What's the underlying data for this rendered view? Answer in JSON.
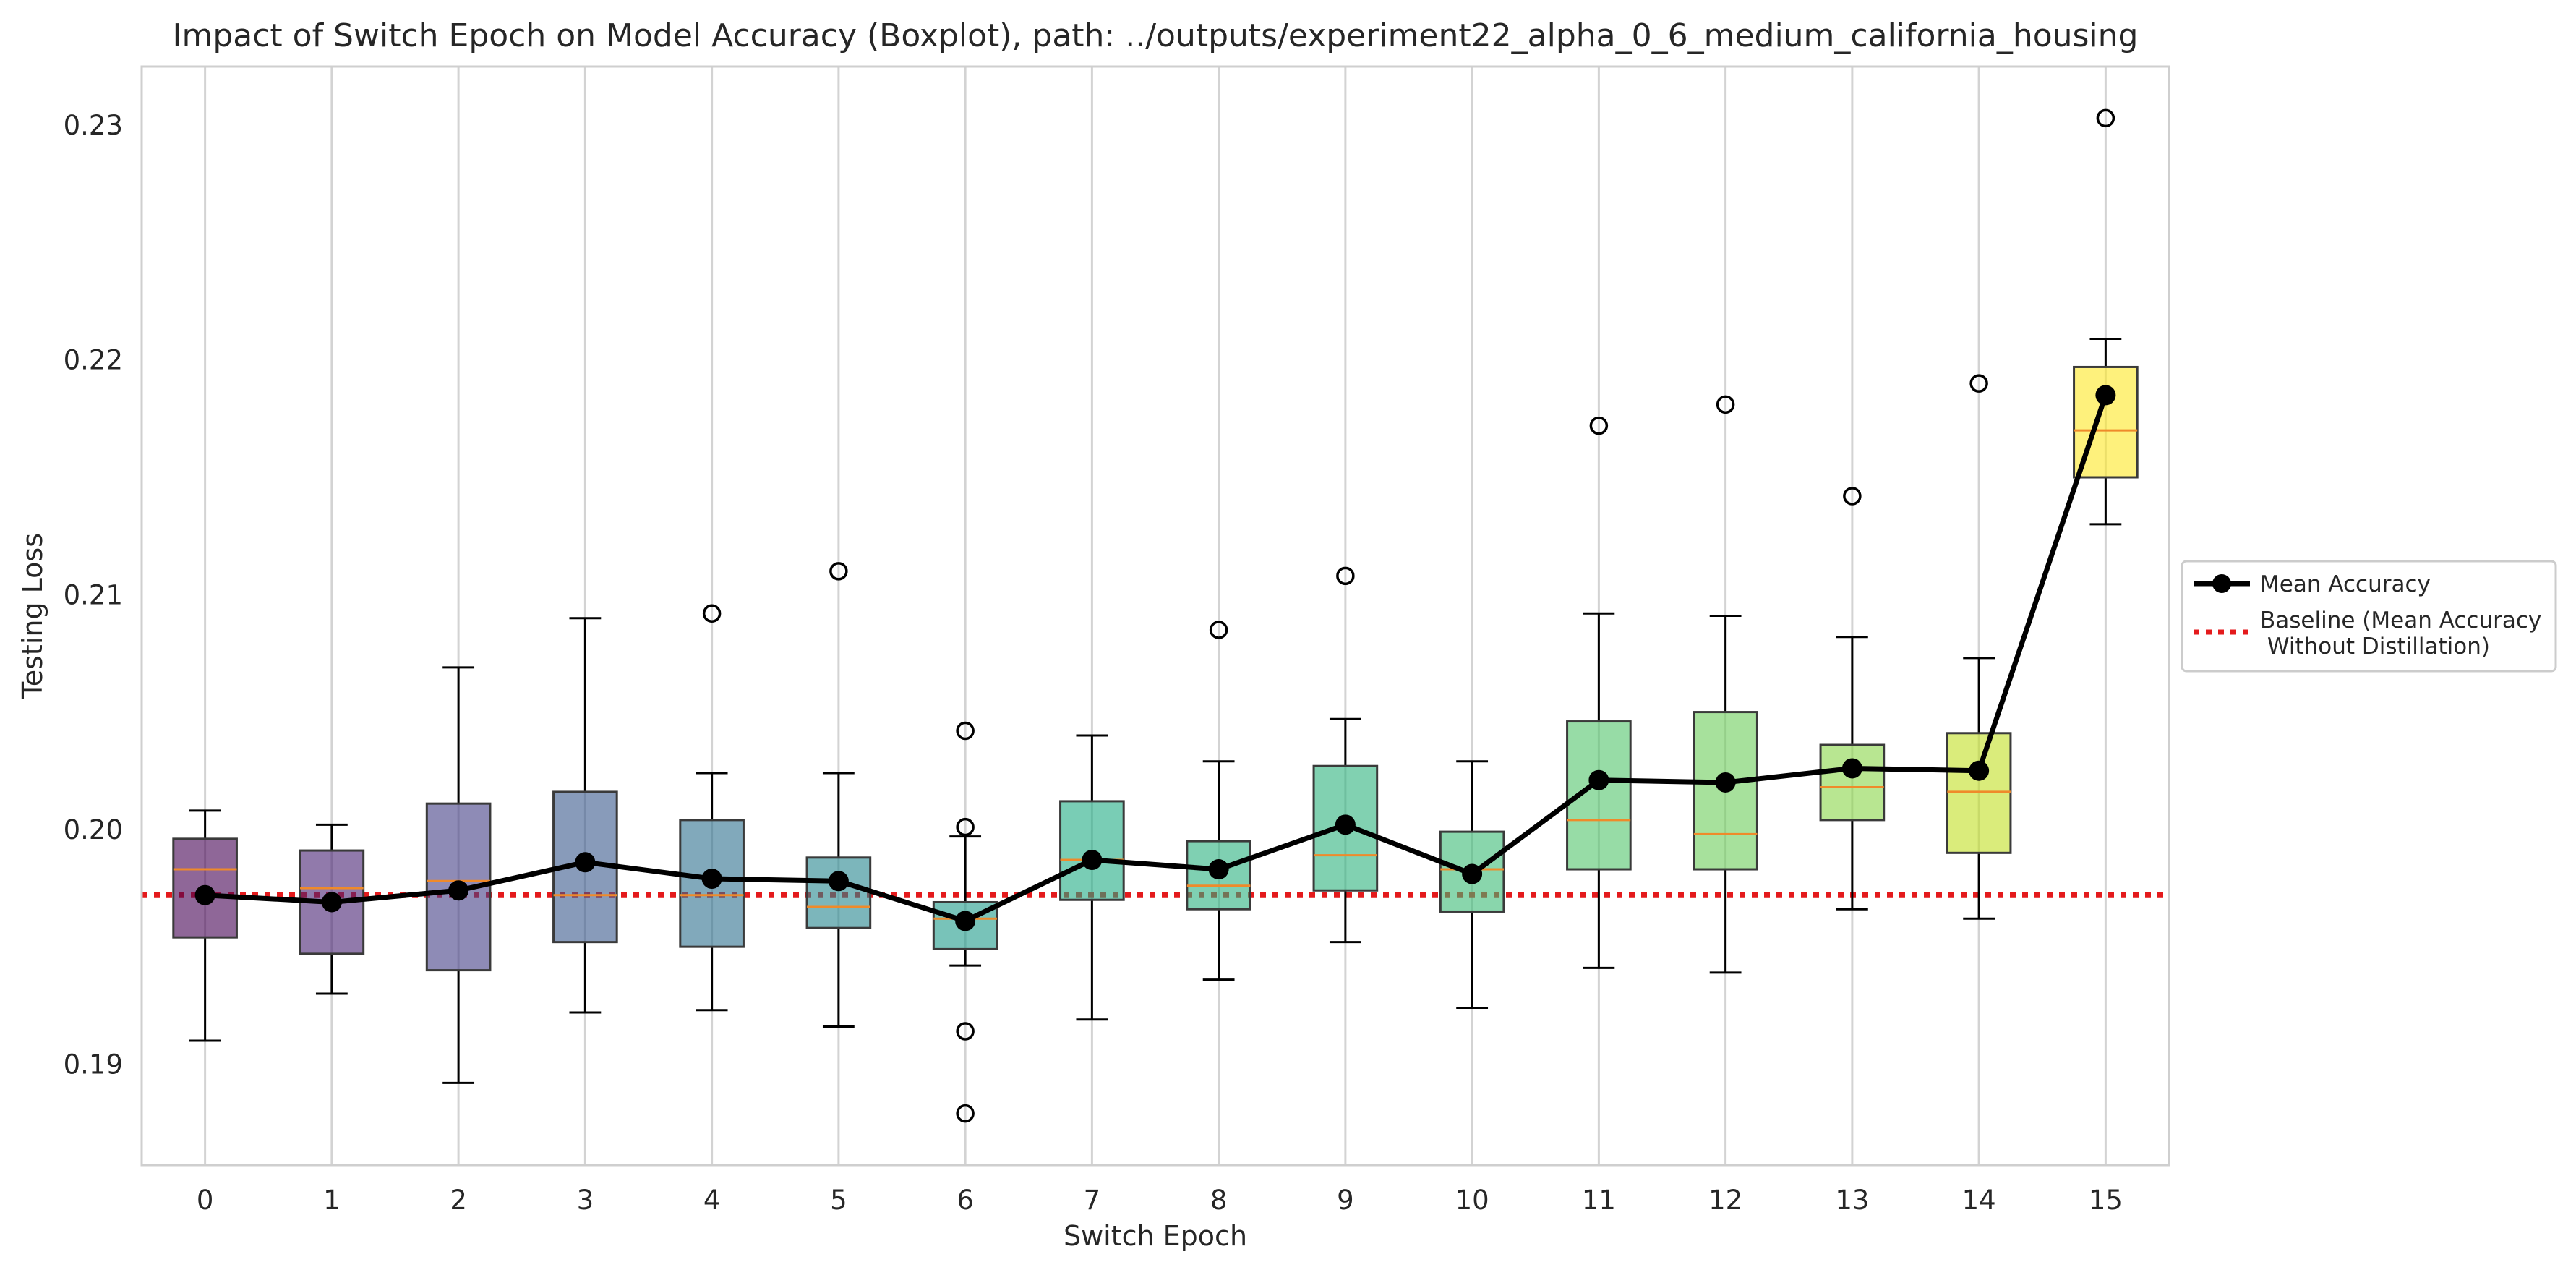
{
  "chart_data": {
    "type": "boxplot",
    "title": "Impact of Switch Epoch on Model Accuracy (Boxplot), path: ../outputs/experiment22_alpha_0_6_medium_california_housing",
    "xlabel": "Switch Epoch",
    "ylabel": "Testing Loss",
    "categories": [
      "0",
      "1",
      "2",
      "3",
      "4",
      "5",
      "6",
      "7",
      "8",
      "9",
      "10",
      "11",
      "12",
      "13",
      "14",
      "15"
    ],
    "ylim": [
      0.1857,
      0.2325
    ],
    "yticks": [
      {
        "value": 0.19,
        "label": "0.19"
      },
      {
        "value": 0.2,
        "label": "0.20"
      },
      {
        "value": 0.21,
        "label": "0.21"
      },
      {
        "value": 0.22,
        "label": "0.22"
      },
      {
        "value": 0.23,
        "label": "0.23"
      }
    ],
    "grid": "x",
    "boxes": [
      {
        "whislo": 0.191,
        "q1": 0.1954,
        "med": 0.1983,
        "q3": 0.1996,
        "whishi": 0.2008,
        "fliers": [],
        "color": "#440154"
      },
      {
        "whislo": 0.193,
        "q1": 0.1947,
        "med": 0.1975,
        "q3": 0.1991,
        "whishi": 0.2002,
        "fliers": [],
        "color": "#482173"
      },
      {
        "whislo": 0.1892,
        "q1": 0.194,
        "med": 0.1978,
        "q3": 0.2011,
        "whishi": 0.2069,
        "fliers": [],
        "color": "#433e85"
      },
      {
        "whislo": 0.1922,
        "q1": 0.1952,
        "med": 0.1972,
        "q3": 0.2016,
        "whishi": 0.209,
        "fliers": [],
        "color": "#38588c"
      },
      {
        "whislo": 0.1923,
        "q1": 0.195,
        "med": 0.1972,
        "q3": 0.2004,
        "whishi": 0.2024,
        "fliers": [
          0.2092
        ],
        "color": "#2d708e"
      },
      {
        "whislo": 0.1916,
        "q1": 0.1958,
        "med": 0.1967,
        "q3": 0.1988,
        "whishi": 0.2024,
        "fliers": [
          0.211
        ],
        "color": "#25858e"
      },
      {
        "whislo": 0.1942,
        "q1": 0.1949,
        "med": 0.1962,
        "q3": 0.1969,
        "whishi": 0.1997,
        "fliers": [
          0.2042,
          0.2001,
          0.1914,
          0.1879
        ],
        "color": "#1e9b8a"
      },
      {
        "whislo": 0.1919,
        "q1": 0.197,
        "med": 0.1987,
        "q3": 0.2012,
        "whishi": 0.204,
        "fliers": [],
        "color": "#20ab84"
      },
      {
        "whislo": 0.1936,
        "q1": 0.1966,
        "med": 0.1976,
        "q3": 0.1995,
        "whishi": 0.2029,
        "fliers": [
          0.2085
        ],
        "color": "#2ab07f"
      },
      {
        "whislo": 0.1952,
        "q1": 0.1974,
        "med": 0.1989,
        "q3": 0.2027,
        "whishi": 0.2047,
        "fliers": [
          0.2108
        ],
        "color": "#2db27d"
      },
      {
        "whislo": 0.1924,
        "q1": 0.1965,
        "med": 0.1983,
        "q3": 0.1999,
        "whishi": 0.2029,
        "fliers": [],
        "color": "#3bbb75"
      },
      {
        "whislo": 0.1941,
        "q1": 0.1983,
        "med": 0.2004,
        "q3": 0.2046,
        "whishi": 0.2092,
        "fliers": [
          0.2172
        ],
        "color": "#51c56a"
      },
      {
        "whislo": 0.1939,
        "q1": 0.1983,
        "med": 0.1998,
        "q3": 0.205,
        "whishi": 0.2091,
        "fliers": [
          0.2181
        ],
        "color": "#6ccd5a"
      },
      {
        "whislo": 0.1966,
        "q1": 0.2004,
        "med": 0.2018,
        "q3": 0.2036,
        "whishi": 0.2082,
        "fliers": [
          0.2142
        ],
        "color": "#89d548"
      },
      {
        "whislo": 0.1962,
        "q1": 0.199,
        "med": 0.2016,
        "q3": 0.2041,
        "whishi": 0.2073,
        "fliers": [
          0.219
        ],
        "color": "#c2df23"
      },
      {
        "whislo": 0.213,
        "q1": 0.215,
        "med": 0.217,
        "q3": 0.2197,
        "whishi": 0.2209,
        "fliers": [
          0.2303
        ],
        "color": "#fde725"
      }
    ],
    "series": [
      {
        "name": "Mean Accuracy",
        "values": [
          0.1972,
          0.1969,
          0.1974,
          0.1986,
          0.1979,
          0.1978,
          0.1961,
          0.1987,
          0.1983,
          0.2002,
          0.1981,
          0.2021,
          0.202,
          0.2026,
          0.2025,
          0.2185
        ],
        "color": "#000000"
      }
    ],
    "baseline": {
      "name": "Baseline (Mean Accuracy\n Without Distillation)",
      "value": 0.1972,
      "color": "#e41a1c"
    },
    "median_color": "#ef8a2a",
    "legend": {
      "placement": "outside-right",
      "entries": [
        {
          "label": "Mean Accuracy"
        },
        {
          "label_lines": [
            "Baseline (Mean Accuracy",
            " Without Distillation)"
          ]
        }
      ]
    }
  }
}
